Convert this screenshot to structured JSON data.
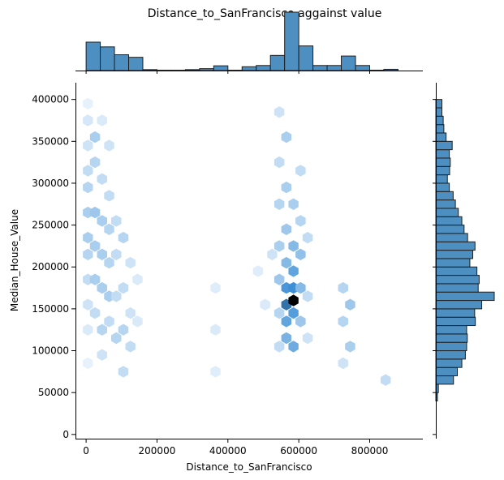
{
  "chart_data": {
    "type": "heatmap",
    "subtype": "jointplot-hexbin-with-marginal-histograms",
    "title": "Distance_to_SanFrancisco aggainst value",
    "xlabel": "Distance_to_SanFrancisco",
    "ylabel": "Median_House_Value",
    "xlim": [
      -30000,
      950000
    ],
    "ylim": [
      -5000,
      420000
    ],
    "x_ticks": [
      0,
      200000,
      400000,
      600000,
      800000
    ],
    "x_tick_labels": [
      "0",
      "200000",
      "400000",
      "600000",
      "800000"
    ],
    "y_ticks": [
      0,
      50000,
      100000,
      150000,
      200000,
      250000,
      300000,
      350000,
      400000
    ],
    "y_tick_labels": [
      "0",
      "50000",
      "100000",
      "150000",
      "200000",
      "250000",
      "300000",
      "350000",
      "400000"
    ],
    "colors": {
      "bar": "#4c8fc0",
      "bar_edge": "#1f1f1f",
      "hex_dark": "#000000",
      "hex_mid": "#3d8fd6",
      "hex_light": "#f2f8fe"
    },
    "x_marginal_histogram": {
      "bins": [
        {
          "start": 0,
          "end": 40000,
          "count": 9
        },
        {
          "start": 40000,
          "end": 80000,
          "count": 7.5
        },
        {
          "start": 80000,
          "end": 120000,
          "count": 5
        },
        {
          "start": 120000,
          "end": 160000,
          "count": 4.2
        },
        {
          "start": 160000,
          "end": 200000,
          "count": 0.3
        },
        {
          "start": 200000,
          "end": 240000,
          "count": 0.1
        },
        {
          "start": 240000,
          "end": 280000,
          "count": 0.1
        },
        {
          "start": 280000,
          "end": 320000,
          "count": 0.3
        },
        {
          "start": 320000,
          "end": 360000,
          "count": 0.6
        },
        {
          "start": 360000,
          "end": 400000,
          "count": 1.5
        },
        {
          "start": 400000,
          "end": 440000,
          "count": 0.1
        },
        {
          "start": 440000,
          "end": 480000,
          "count": 1.2
        },
        {
          "start": 480000,
          "end": 520000,
          "count": 1.6
        },
        {
          "start": 520000,
          "end": 560000,
          "count": 4.8
        },
        {
          "start": 560000,
          "end": 600000,
          "count": 18.5
        },
        {
          "start": 600000,
          "end": 640000,
          "count": 7.8
        },
        {
          "start": 640000,
          "end": 680000,
          "count": 1.6
        },
        {
          "start": 680000,
          "end": 720000,
          "count": 1.6
        },
        {
          "start": 720000,
          "end": 760000,
          "count": 4.6
        },
        {
          "start": 760000,
          "end": 800000,
          "count": 1.6
        },
        {
          "start": 800000,
          "end": 840000,
          "count": 0.1
        },
        {
          "start": 840000,
          "end": 880000,
          "count": 0.4
        }
      ]
    },
    "y_marginal_histogram": {
      "bins": [
        {
          "start": 40000,
          "end": 50000,
          "count": 0.5
        },
        {
          "start": 50000,
          "end": 60000,
          "count": 0.8
        },
        {
          "start": 60000,
          "end": 70000,
          "count": 5.5
        },
        {
          "start": 70000,
          "end": 80000,
          "count": 6.7
        },
        {
          "start": 80000,
          "end": 90000,
          "count": 8.1
        },
        {
          "start": 90000,
          "end": 100000,
          "count": 9.2
        },
        {
          "start": 100000,
          "end": 110000,
          "count": 9.6
        },
        {
          "start": 110000,
          "end": 120000,
          "count": 9.8
        },
        {
          "start": 120000,
          "end": 130000,
          "count": 9.6
        },
        {
          "start": 130000,
          "end": 140000,
          "count": 12.3
        },
        {
          "start": 140000,
          "end": 150000,
          "count": 12.1
        },
        {
          "start": 150000,
          "end": 160000,
          "count": 14.3
        },
        {
          "start": 160000,
          "end": 170000,
          "count": 18.2
        },
        {
          "start": 170000,
          "end": 180000,
          "count": 13.2
        },
        {
          "start": 180000,
          "end": 190000,
          "count": 13.5
        },
        {
          "start": 190000,
          "end": 200000,
          "count": 12.8
        },
        {
          "start": 200000,
          "end": 210000,
          "count": 10.6
        },
        {
          "start": 210000,
          "end": 220000,
          "count": 11.5
        },
        {
          "start": 220000,
          "end": 230000,
          "count": 12.2
        },
        {
          "start": 230000,
          "end": 240000,
          "count": 9.9
        },
        {
          "start": 240000,
          "end": 250000,
          "count": 8.8
        },
        {
          "start": 250000,
          "end": 260000,
          "count": 8.1
        },
        {
          "start": 260000,
          "end": 270000,
          "count": 7.0
        },
        {
          "start": 270000,
          "end": 280000,
          "count": 6.1
        },
        {
          "start": 280000,
          "end": 290000,
          "count": 5.4
        },
        {
          "start": 290000,
          "end": 300000,
          "count": 4.2
        },
        {
          "start": 300000,
          "end": 310000,
          "count": 3.6
        },
        {
          "start": 310000,
          "end": 320000,
          "count": 4.3
        },
        {
          "start": 320000,
          "end": 330000,
          "count": 4.5
        },
        {
          "start": 330000,
          "end": 340000,
          "count": 4.2
        },
        {
          "start": 340000,
          "end": 350000,
          "count": 5.1
        },
        {
          "start": 350000,
          "end": 360000,
          "count": 3.2
        },
        {
          "start": 360000,
          "end": 370000,
          "count": 2.5
        },
        {
          "start": 370000,
          "end": 380000,
          "count": 2.3
        },
        {
          "start": 380000,
          "end": 390000,
          "count": 1.9
        },
        {
          "start": 390000,
          "end": 400000,
          "count": 1.9
        }
      ]
    },
    "hexbin_cells": [
      {
        "x": 5000,
        "y": 395000,
        "density": 0.05
      },
      {
        "x": 5000,
        "y": 375000,
        "density": 0.12
      },
      {
        "x": 5000,
        "y": 345000,
        "density": 0.15
      },
      {
        "x": 5000,
        "y": 315000,
        "density": 0.2
      },
      {
        "x": 5000,
        "y": 295000,
        "density": 0.25
      },
      {
        "x": 5000,
        "y": 265000,
        "density": 0.3
      },
      {
        "x": 5000,
        "y": 235000,
        "density": 0.3
      },
      {
        "x": 5000,
        "y": 215000,
        "density": 0.25
      },
      {
        "x": 5000,
        "y": 185000,
        "density": 0.2
      },
      {
        "x": 5000,
        "y": 155000,
        "density": 0.15
      },
      {
        "x": 5000,
        "y": 125000,
        "density": 0.1
      },
      {
        "x": 5000,
        "y": 85000,
        "density": 0.05
      },
      {
        "x": 25000,
        "y": 355000,
        "density": 0.3
      },
      {
        "x": 25000,
        "y": 325000,
        "density": 0.25
      },
      {
        "x": 25000,
        "y": 265000,
        "density": 0.35
      },
      {
        "x": 25000,
        "y": 225000,
        "density": 0.3
      },
      {
        "x": 25000,
        "y": 185000,
        "density": 0.3
      },
      {
        "x": 25000,
        "y": 145000,
        "density": 0.2
      },
      {
        "x": 45000,
        "y": 375000,
        "density": 0.1
      },
      {
        "x": 45000,
        "y": 305000,
        "density": 0.2
      },
      {
        "x": 45000,
        "y": 255000,
        "density": 0.3
      },
      {
        "x": 45000,
        "y": 215000,
        "density": 0.3
      },
      {
        "x": 45000,
        "y": 175000,
        "density": 0.3
      },
      {
        "x": 45000,
        "y": 125000,
        "density": 0.25
      },
      {
        "x": 45000,
        "y": 95000,
        "density": 0.15
      },
      {
        "x": 65000,
        "y": 345000,
        "density": 0.15
      },
      {
        "x": 65000,
        "y": 285000,
        "density": 0.2
      },
      {
        "x": 65000,
        "y": 245000,
        "density": 0.25
      },
      {
        "x": 65000,
        "y": 205000,
        "density": 0.25
      },
      {
        "x": 65000,
        "y": 165000,
        "density": 0.3
      },
      {
        "x": 65000,
        "y": 135000,
        "density": 0.2
      },
      {
        "x": 85000,
        "y": 255000,
        "density": 0.2
      },
      {
        "x": 85000,
        "y": 215000,
        "density": 0.2
      },
      {
        "x": 85000,
        "y": 165000,
        "density": 0.2
      },
      {
        "x": 85000,
        "y": 115000,
        "density": 0.25
      },
      {
        "x": 105000,
        "y": 235000,
        "density": 0.25
      },
      {
        "x": 105000,
        "y": 175000,
        "density": 0.2
      },
      {
        "x": 105000,
        "y": 125000,
        "density": 0.25
      },
      {
        "x": 105000,
        "y": 75000,
        "density": 0.2
      },
      {
        "x": 125000,
        "y": 205000,
        "density": 0.15
      },
      {
        "x": 125000,
        "y": 145000,
        "density": 0.15
      },
      {
        "x": 125000,
        "y": 105000,
        "density": 0.2
      },
      {
        "x": 145000,
        "y": 185000,
        "density": 0.1
      },
      {
        "x": 145000,
        "y": 135000,
        "density": 0.1
      },
      {
        "x": 365000,
        "y": 175000,
        "density": 0.08
      },
      {
        "x": 365000,
        "y": 125000,
        "density": 0.1
      },
      {
        "x": 365000,
        "y": 75000,
        "density": 0.08
      },
      {
        "x": 485000,
        "y": 195000,
        "density": 0.08
      },
      {
        "x": 505000,
        "y": 155000,
        "density": 0.1
      },
      {
        "x": 525000,
        "y": 215000,
        "density": 0.15
      },
      {
        "x": 545000,
        "y": 385000,
        "density": 0.15
      },
      {
        "x": 545000,
        "y": 325000,
        "density": 0.2
      },
      {
        "x": 545000,
        "y": 275000,
        "density": 0.25
      },
      {
        "x": 545000,
        "y": 225000,
        "density": 0.3
      },
      {
        "x": 545000,
        "y": 185000,
        "density": 0.35
      },
      {
        "x": 545000,
        "y": 145000,
        "density": 0.25
      },
      {
        "x": 545000,
        "y": 105000,
        "density": 0.2
      },
      {
        "x": 565000,
        "y": 355000,
        "density": 0.3
      },
      {
        "x": 565000,
        "y": 295000,
        "density": 0.3
      },
      {
        "x": 565000,
        "y": 245000,
        "density": 0.35
      },
      {
        "x": 565000,
        "y": 205000,
        "density": 0.45
      },
      {
        "x": 565000,
        "y": 175000,
        "density": 0.7
      },
      {
        "x": 565000,
        "y": 155000,
        "density": 0.8
      },
      {
        "x": 565000,
        "y": 135000,
        "density": 0.6
      },
      {
        "x": 565000,
        "y": 115000,
        "density": 0.5
      },
      {
        "x": 585000,
        "y": 275000,
        "density": 0.3
      },
      {
        "x": 585000,
        "y": 225000,
        "density": 0.45
      },
      {
        "x": 585000,
        "y": 195000,
        "density": 0.6
      },
      {
        "x": 585000,
        "y": 175000,
        "density": 0.75
      },
      {
        "x": 585000,
        "y": 160000,
        "density": 1.0
      },
      {
        "x": 585000,
        "y": 145000,
        "density": 0.65
      },
      {
        "x": 585000,
        "y": 105000,
        "density": 0.55
      },
      {
        "x": 605000,
        "y": 315000,
        "density": 0.2
      },
      {
        "x": 605000,
        "y": 255000,
        "density": 0.25
      },
      {
        "x": 605000,
        "y": 215000,
        "density": 0.4
      },
      {
        "x": 605000,
        "y": 175000,
        "density": 0.45
      },
      {
        "x": 605000,
        "y": 135000,
        "density": 0.35
      },
      {
        "x": 625000,
        "y": 235000,
        "density": 0.2
      },
      {
        "x": 625000,
        "y": 165000,
        "density": 0.2
      },
      {
        "x": 625000,
        "y": 115000,
        "density": 0.15
      },
      {
        "x": 725000,
        "y": 175000,
        "density": 0.25
      },
      {
        "x": 745000,
        "y": 155000,
        "density": 0.35
      },
      {
        "x": 725000,
        "y": 135000,
        "density": 0.25
      },
      {
        "x": 745000,
        "y": 105000,
        "density": 0.3
      },
      {
        "x": 725000,
        "y": 85000,
        "density": 0.15
      },
      {
        "x": 845000,
        "y": 65000,
        "density": 0.2
      }
    ]
  }
}
